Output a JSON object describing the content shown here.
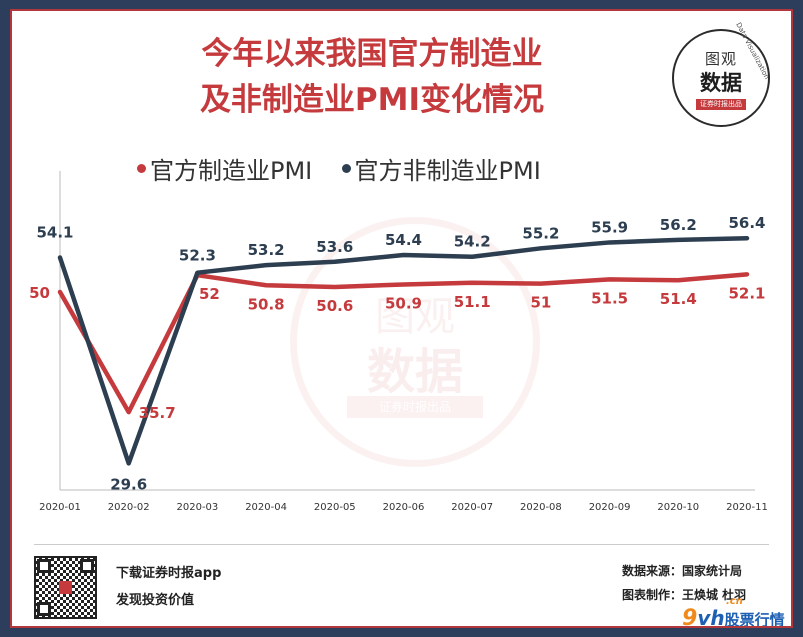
{
  "title_line1": "今年以来我国官方制造业",
  "title_line2": "及非制造业PMI变化情况",
  "logo": {
    "top": "图观",
    "main": "数据",
    "band": "证券时报出品",
    "arc": "Data Visualization"
  },
  "colors": {
    "manufacturing": "#c53a3d",
    "non_manufacturing": "#2c3e50",
    "frame": "#b2373c",
    "background": "#2d3d5c"
  },
  "chart_data": {
    "type": "line",
    "categories": [
      "2020-01",
      "2020-02",
      "2020-03",
      "2020-04",
      "2020-05",
      "2020-06",
      "2020-07",
      "2020-08",
      "2020-09",
      "2020-10",
      "2020-11"
    ],
    "series": [
      {
        "name": "官方制造业PMI",
        "values": [
          50,
          35.7,
          52,
          50.8,
          50.6,
          50.9,
          51.1,
          51,
          51.5,
          51.4,
          52.1
        ]
      },
      {
        "name": "官方非制造业PMI",
        "values": [
          54.1,
          29.6,
          52.3,
          53.2,
          53.6,
          54.4,
          54.2,
          55.2,
          55.9,
          56.2,
          56.4
        ]
      }
    ],
    "value_labels": {
      "manufacturing": [
        "50",
        "35.7",
        "52",
        "50.8",
        "50.6",
        "50.9",
        "51.1",
        "51",
        "51.5",
        "51.4",
        "52.1"
      ],
      "non_manufacturing": [
        "54.1",
        "29.6",
        "52.3",
        "53.2",
        "53.6",
        "54.4",
        "54.2",
        "55.2",
        "55.9",
        "56.2",
        "56.4"
      ]
    },
    "legend_position": "top-left",
    "grid": false
  },
  "footer": {
    "download": "下载证券时报app",
    "discover": "发现投资价值",
    "source": "数据来源：国家统计局",
    "credit": "图表制作：王焕城 杜羽"
  },
  "brand": {
    "nine": "9",
    "vh": "vh",
    "cn": ".cn",
    "text": "股票行情"
  }
}
